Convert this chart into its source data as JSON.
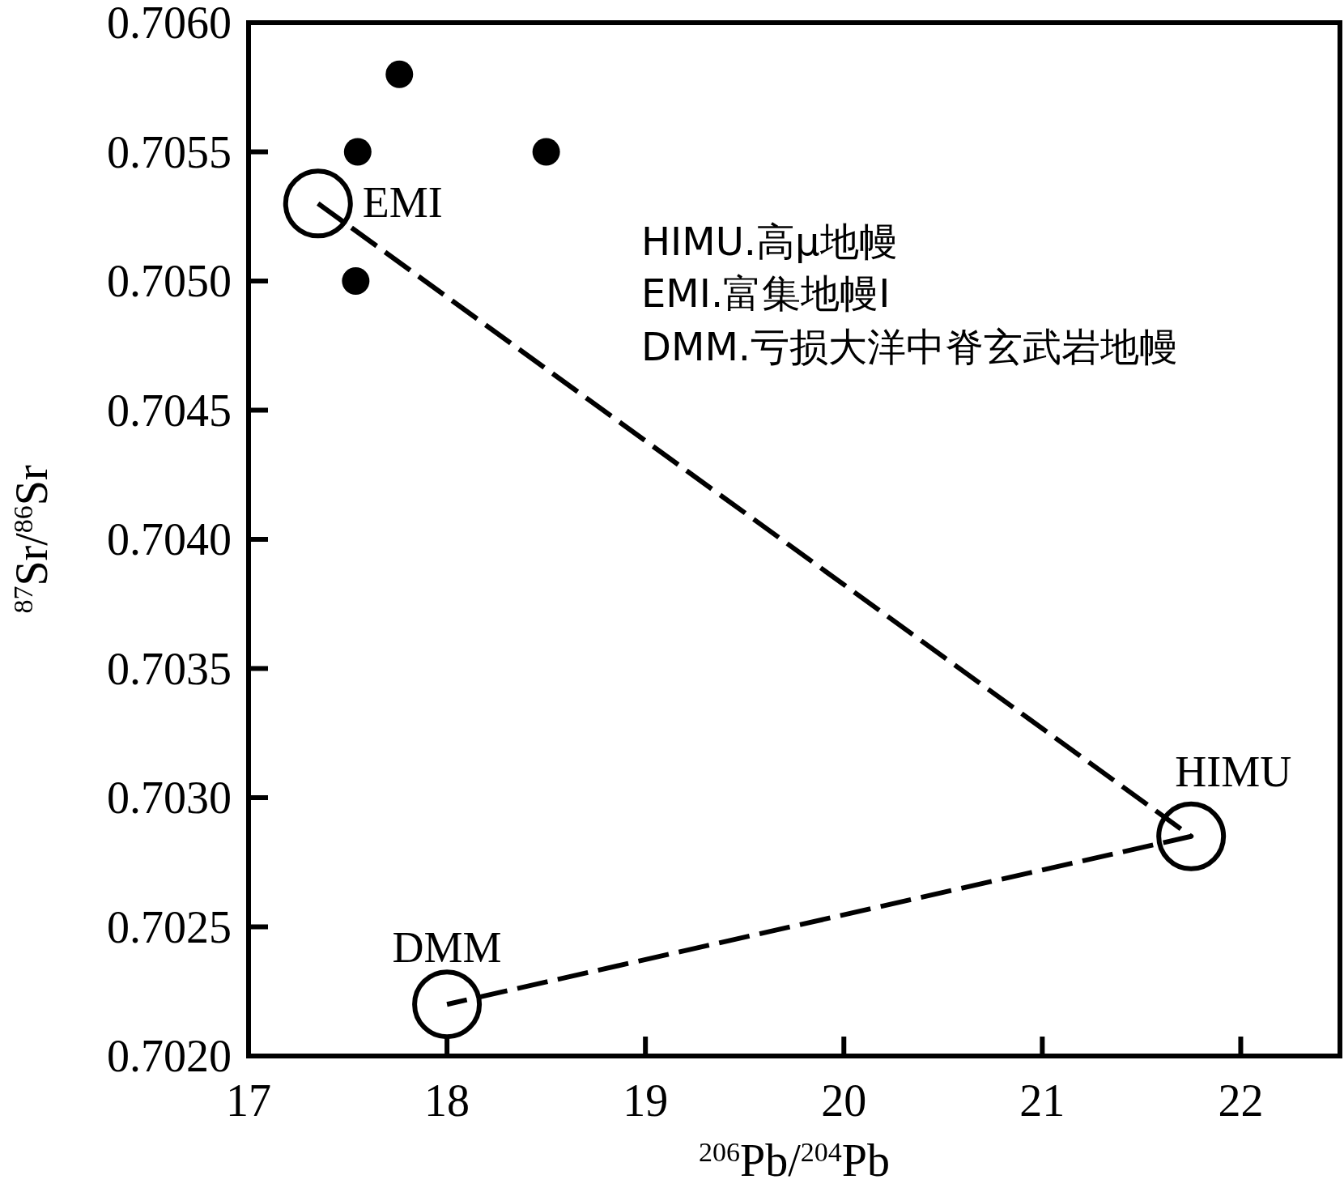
{
  "chart_data": {
    "type": "scatter",
    "xlabel": "$^{206}$Pb/$^{204}$Pb",
    "ylabel": "$^{87}$Sr/$^{86}$Sr",
    "xlim": [
      17,
      22.5
    ],
    "ylim": [
      0.702,
      0.706
    ],
    "xticks": [
      17,
      18,
      19,
      20,
      21,
      22
    ],
    "yticks": [
      {
        "value": 0.702,
        "label": "0.7020"
      },
      {
        "value": 0.7025,
        "label": "0.7025"
      },
      {
        "value": 0.703,
        "label": "0.7030"
      },
      {
        "value": 0.7035,
        "label": "0.7035"
      },
      {
        "value": 0.704,
        "label": "0.7040"
      },
      {
        "value": 0.7045,
        "label": "0.7045"
      },
      {
        "value": 0.705,
        "label": "0.7050"
      },
      {
        "value": 0.7055,
        "label": "0.7055"
      },
      {
        "value": 0.706,
        "label": "0.7060"
      }
    ],
    "grid": false,
    "series": [
      {
        "type": "scatter",
        "color": "#000000",
        "marker": "circle",
        "x": [
          17.76,
          17.55,
          18.5,
          17.54
        ],
        "values": [
          0.7058,
          0.7055,
          0.7055,
          0.705
        ]
      },
      {
        "type": "line",
        "color": "#000000",
        "marker": "circle",
        "line_style": "dashed",
        "x": [
          17.35,
          21.75,
          18.0
        ],
        "values": [
          0.7053,
          0.70285,
          0.7022
        ]
      }
    ],
    "annotations": [
      {
        "text": "EMI",
        "x": 17.35,
        "y": 0.7053
      },
      {
        "text": "HIMU",
        "x": 21.75,
        "y": 0.70285
      },
      {
        "text": "DMM",
        "x": 18.0,
        "y": 0.7022
      },
      "HIMU.高μ地幔",
      "EMI.富集地幔Ⅰ",
      "DMM.亏损大洋中脊玄武岩地幔"
    ]
  }
}
